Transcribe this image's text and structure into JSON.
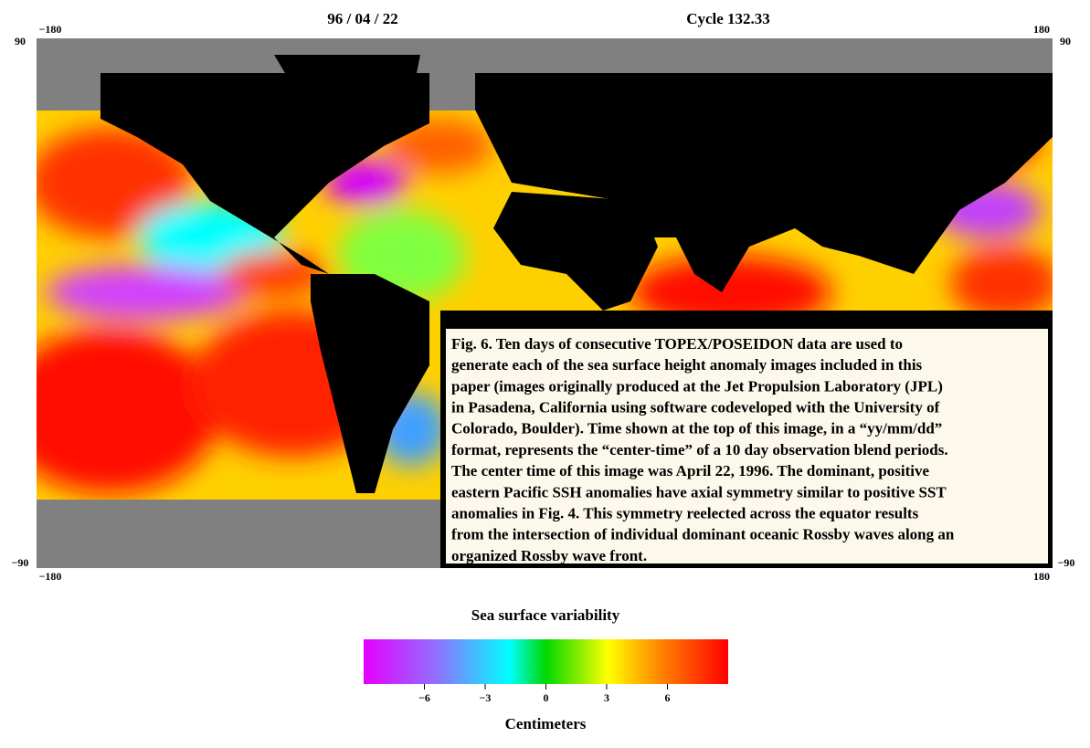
{
  "header": {
    "date": "96 / 04 / 22",
    "cycle": "Cycle 132.33"
  },
  "map": {
    "top_left_lon": "−180",
    "top_right_lon": "180",
    "left_top_lat": "90",
    "right_top_lat": "90",
    "left_bottom_lat": "−90",
    "right_bottom_lat": "−90",
    "bottom_left_lon": "−180",
    "bottom_right_lon": "180"
  },
  "caption": {
    "lines": [
      "Fig. 6.  Ten days of consecutive TOPEX/POSEIDON data are used to",
      "generate each of the sea surface height anomaly images included in this",
      "paper (images originally produced at the Jet Propulsion Laboratory (JPL)",
      "in Pasadena, California using software codeveloped with the University of",
      "Colorado, Boulder).  Time shown at the top of this image, in a “yy/mm/dd”",
      "format, represents the “center-time” of a 10 day observation blend periods.",
      "The center time of this image was April 22, 1996.  The dominant, positive",
      "eastern Pacific SSH anomalies have axial symmetry similar to positive SST",
      "anomalies in Fig. 4.  This symmetry reelected across the equator results",
      "from the intersection of individual dominant oceanic Rossby waves along an",
      "organized Rossby wave front."
    ]
  },
  "colorbar": {
    "title": "Sea surface variability",
    "unit_label": "Centimeters",
    "lim": [
      -9,
      9
    ],
    "ticks": [
      {
        "value": -6,
        "label": "−6"
      },
      {
        "value": -3,
        "label": "−3"
      },
      0,
      3,
      6
    ]
  }
}
